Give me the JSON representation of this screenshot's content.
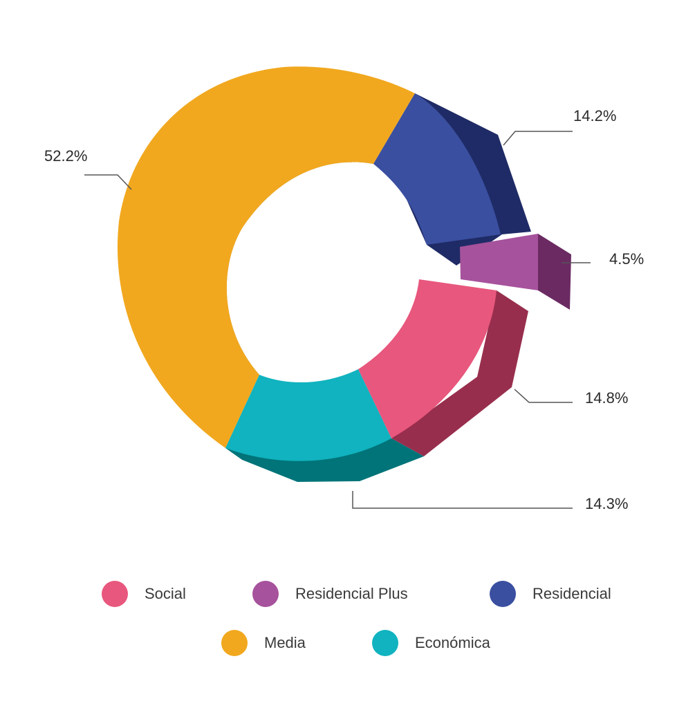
{
  "chart_data": {
    "type": "pie",
    "variant": "donut-3d-exploded",
    "title": "",
    "legend_placement": "bottom",
    "slices": [
      {
        "name": "Residencial",
        "value": 14.2,
        "label": "14.2%",
        "color": "#3a4fa0"
      },
      {
        "name": "Residencial Plus",
        "value": 4.5,
        "label": "4.5%",
        "color": "#a6529c",
        "exploded": true
      },
      {
        "name": "Social",
        "value": 14.8,
        "label": "14.8%",
        "color": "#e8577d"
      },
      {
        "name": "Económica",
        "value": 14.3,
        "label": "14.3%",
        "color": "#10b3bf"
      },
      {
        "name": "Media",
        "value": 52.2,
        "label": "52.2%",
        "color": "#f1a81f"
      }
    ]
  },
  "legend": [
    {
      "label": "Social",
      "color": "#e8577d"
    },
    {
      "label": "Residencial Plus",
      "color": "#a6529c"
    },
    {
      "label": "Residencial",
      "color": "#3a4fa0"
    },
    {
      "label": "Media",
      "color": "#f1a81f"
    },
    {
      "label": "Económica",
      "color": "#10b3bf"
    }
  ]
}
